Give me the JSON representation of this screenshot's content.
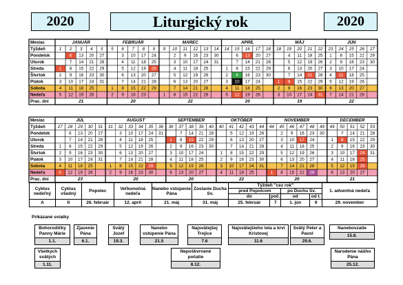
{
  "header": {
    "year_left": "2020",
    "title": "Liturgický rok",
    "year_right": "2020"
  },
  "calendar": {
    "row_labels": {
      "month": "Mesiac",
      "week": "Týždeň",
      "workdays": "Prac. dni"
    },
    "weekdays": [
      "Pondelok",
      "Utorok",
      "Streda",
      "Štvrtok",
      "Piatok",
      "Sobota",
      "Nedeľa"
    ],
    "weekday_colors": [
      "#ffffff",
      "#ffffff",
      "#ffffff",
      "#ffffff",
      "#ffffff",
      "#f6c24e",
      "#f4a0b4"
    ],
    "halves": [
      {
        "months": [
          {
            "name": "JANUÁR",
            "weeks": [
              1,
              2,
              3,
              4,
              5
            ],
            "days": [
              [
                null,
                null,
                1,
                2,
                3,
                4,
                5
              ],
              [
                6,
                7,
                8,
                9,
                10,
                11,
                12
              ],
              [
                13,
                14,
                15,
                16,
                17,
                18,
                19
              ],
              [
                20,
                21,
                22,
                23,
                24,
                25,
                26
              ],
              [
                27,
                28,
                29,
                30,
                31,
                null,
                null
              ]
            ],
            "workdays": 21,
            "highlights": [
              {
                "day": 1,
                "color": "#e8553a"
              },
              {
                "day": 6,
                "color": "#e8553a"
              }
            ]
          },
          {
            "name": "FEBRUÁR",
            "weeks": [
              5,
              6,
              7,
              8,
              9
            ],
            "days": [
              [
                null,
                null,
                null,
                null,
                null,
                1,
                2
              ],
              [
                3,
                4,
                5,
                6,
                7,
                8,
                9
              ],
              [
                10,
                11,
                12,
                13,
                14,
                15,
                16
              ],
              [
                17,
                18,
                19,
                20,
                21,
                22,
                23
              ],
              [
                24,
                25,
                26,
                27,
                28,
                29,
                null
              ]
            ],
            "workdays": 20,
            "highlights": [
              {
                "day": 26,
                "color": "#e8553a"
              }
            ]
          },
          {
            "name": "MAREC",
            "weeks": [
              9,
              10,
              11,
              12,
              13,
              14
            ],
            "days": [
              [
                null,
                null,
                null,
                null,
                null,
                null,
                1
              ],
              [
                2,
                3,
                4,
                5,
                6,
                7,
                8
              ],
              [
                9,
                10,
                11,
                12,
                13,
                14,
                15
              ],
              [
                16,
                17,
                18,
                19,
                20,
                21,
                22
              ],
              [
                23,
                24,
                25,
                26,
                27,
                28,
                29
              ],
              [
                30,
                31,
                null,
                null,
                null,
                null,
                null
              ]
            ],
            "workdays": 22,
            "highlights": []
          },
          {
            "name": "APRÍL",
            "weeks": [
              14,
              15,
              16,
              17,
              18
            ],
            "days": [
              [
                null,
                null,
                1,
                2,
                3,
                4,
                5
              ],
              [
                6,
                7,
                8,
                9,
                10,
                11,
                12
              ],
              [
                13,
                14,
                15,
                16,
                17,
                18,
                19
              ],
              [
                20,
                21,
                22,
                23,
                24,
                25,
                26
              ],
              [
                27,
                28,
                29,
                30,
                null,
                null,
                null
              ]
            ],
            "workdays": 20,
            "highlights": [
              {
                "day": 9,
                "color": "#3aa84a"
              },
              {
                "day": 10,
                "color": "#111111"
              },
              {
                "day": 12,
                "color": "#e8553a"
              },
              {
                "day": 13,
                "color": "#e8553a"
              }
            ]
          },
          {
            "name": "MÁJ",
            "weeks": [
              18,
              19,
              20,
              21,
              22
            ],
            "days": [
              [
                null,
                null,
                null,
                null,
                1,
                2,
                3
              ],
              [
                4,
                5,
                6,
                7,
                8,
                9,
                10
              ],
              [
                11,
                12,
                13,
                14,
                15,
                16,
                17
              ],
              [
                18,
                19,
                20,
                21,
                22,
                23,
                24
              ],
              [
                25,
                26,
                27,
                28,
                29,
                30,
                31
              ]
            ],
            "workdays": 19,
            "highlights": [
              {
                "day": 1,
                "color": "#e8553a"
              },
              {
                "day": 8,
                "color": "#e8553a"
              },
              {
                "day": 21,
                "color": "#e8553a"
              },
              {
                "day": 31,
                "color": "#e8553a"
              }
            ]
          },
          {
            "name": "JÚN",
            "weeks": [
              23,
              24,
              25,
              26,
              27
            ],
            "days": [
              [
                1,
                2,
                3,
                4,
                5,
                6,
                7
              ],
              [
                8,
                9,
                10,
                11,
                12,
                13,
                14
              ],
              [
                15,
                16,
                17,
                18,
                19,
                20,
                21
              ],
              [
                22,
                23,
                24,
                25,
                26,
                27,
                28
              ],
              [
                29,
                30,
                null,
                null,
                null,
                null,
                null
              ]
            ],
            "workdays": 22,
            "highlights": [
              {
                "day": 11,
                "color": "#e8553a"
              }
            ]
          }
        ]
      },
      {
        "months": [
          {
            "name": "JÚL",
            "weeks": [
              27,
              28,
              29,
              30,
              31
            ],
            "days": [
              [
                null,
                null,
                1,
                2,
                3,
                4,
                5
              ],
              [
                6,
                7,
                8,
                9,
                10,
                11,
                12
              ],
              [
                13,
                14,
                15,
                16,
                17,
                18,
                19
              ],
              [
                20,
                21,
                22,
                23,
                24,
                25,
                26
              ],
              [
                27,
                28,
                29,
                30,
                31,
                null,
                null
              ]
            ],
            "workdays": 23,
            "highlights": [
              {
                "day": 5,
                "color": "#e8553a"
              }
            ]
          },
          {
            "name": "AUGUST",
            "weeks": [
              31,
              32,
              33,
              34,
              35,
              36
            ],
            "days": [
              [
                null,
                null,
                null,
                null,
                null,
                1,
                2
              ],
              [
                3,
                4,
                5,
                6,
                7,
                8,
                9
              ],
              [
                10,
                11,
                12,
                13,
                14,
                15,
                16
              ],
              [
                17,
                18,
                19,
                20,
                21,
                22,
                23
              ],
              [
                24,
                25,
                26,
                27,
                28,
                29,
                30
              ],
              [
                31,
                null,
                null,
                null,
                null,
                null,
                null
              ]
            ],
            "workdays": 20,
            "highlights": [
              {
                "day": 29,
                "color": "#e8553a"
              }
            ]
          },
          {
            "name": "SEPTEMBER",
            "weeks": [
              36,
              37,
              38,
              39,
              40
            ],
            "days": [
              [
                null,
                1,
                2,
                3,
                4,
                5,
                6
              ],
              [
                7,
                8,
                9,
                10,
                11,
                12,
                13
              ],
              [
                14,
                15,
                16,
                17,
                18,
                19,
                20
              ],
              [
                21,
                22,
                23,
                24,
                25,
                26,
                27
              ],
              [
                28,
                29,
                30,
                null,
                null,
                null,
                null
              ]
            ],
            "workdays": 20,
            "highlights": [
              {
                "day": 1,
                "color": "#e8553a"
              },
              {
                "day": 15,
                "color": "#e8553a"
              }
            ]
          },
          {
            "name": "OKTÓBER",
            "weeks": [
              40,
              41,
              42,
              43,
              44
            ],
            "days": [
              [
                null,
                null,
                null,
                1,
                2,
                3,
                4
              ],
              [
                5,
                6,
                7,
                8,
                9,
                10,
                11
              ],
              [
                12,
                13,
                14,
                15,
                16,
                17,
                18
              ],
              [
                19,
                20,
                21,
                22,
                23,
                24,
                25
              ],
              [
                26,
                27,
                28,
                29,
                30,
                31,
                null
              ]
            ],
            "workdays": 22,
            "highlights": []
          },
          {
            "name": "NOVEMBER",
            "weeks": [
              44,
              45,
              46,
              47,
              48,
              49
            ],
            "days": [
              [
                null,
                null,
                null,
                null,
                null,
                null,
                1
              ],
              [
                2,
                3,
                4,
                5,
                6,
                7,
                8
              ],
              [
                9,
                10,
                11,
                12,
                13,
                14,
                15
              ],
              [
                16,
                17,
                18,
                19,
                20,
                21,
                22
              ],
              [
                23,
                24,
                25,
                26,
                27,
                28,
                29
              ],
              [
                30,
                null,
                null,
                null,
                null,
                null,
                null
              ]
            ],
            "workdays": 20,
            "highlights": [
              {
                "day": 1,
                "color": "#e8553a"
              },
              {
                "day": 17,
                "color": "#e8553a"
              },
              {
                "day": 29,
                "color": "#b0509a"
              }
            ]
          },
          {
            "name": "DECEMBER",
            "weeks": [
              49,
              50,
              51,
              52,
              53
            ],
            "days": [
              [
                null,
                1,
                2,
                3,
                4,
                5,
                6
              ],
              [
                7,
                8,
                9,
                10,
                11,
                12,
                13
              ],
              [
                14,
                15,
                16,
                17,
                18,
                19,
                20
              ],
              [
                21,
                22,
                23,
                24,
                25,
                26,
                27
              ],
              [
                28,
                29,
                30,
                31,
                null,
                null,
                null
              ]
            ],
            "workdays": 21,
            "highlights": [
              {
                "day": 8,
                "color": "#e8553a"
              },
              {
                "day": 24,
                "color": "#e8553a"
              },
              {
                "day": 25,
                "color": "#e8553a"
              },
              {
                "day": 26,
                "color": "#e8553a"
              }
            ]
          }
        ]
      }
    ]
  },
  "cycle_table": {
    "headers": [
      "Cyklus nedeľný",
      "Cyklus všedný",
      "Popolec",
      "Veľkonočná nedeľa",
      "Nanebo vstúpenie Pána",
      "Zoslanie Ducha Sv.",
      "Týždeň \"cez rok\"",
      "1. adventná nedeľa"
    ],
    "subheaders": [
      "pred Popolcom",
      "po Duchu Sv."
    ],
    "subsubheaders": [
      "do",
      "poč.",
      "od",
      "od t."
    ],
    "values": [
      "A",
      "II",
      "26. február",
      "12. apríl",
      "21. máj",
      "31. máj",
      "25. február",
      "7",
      "1. jún",
      "9",
      "29. november"
    ]
  },
  "feasts": {
    "title": "Prikázané sviatky",
    "items": [
      {
        "name": "Bohorodičky Panny Márie",
        "date": "1.1."
      },
      {
        "name": "Zjavenie Pána",
        "date": "6.1."
      },
      {
        "name": "Svätý Jozef",
        "date": "19.3."
      },
      {
        "name": "Nanebo vstúpenie Pána",
        "date": "21.5"
      },
      {
        "name": "Najsvätejšej Trojice",
        "date": "7.6"
      },
      {
        "name": "Najsvätejšieho tela a krvi Kristovej",
        "date": "11.6"
      },
      {
        "name": "Svätý Peter a Pavol",
        "date": "29.6."
      },
      {
        "name": "Nanebovzatie",
        "date": "15.8."
      },
      {
        "name": "Všetkých svätých",
        "date": "1.11."
      },
      {
        "name": "Nepoškvrnené počatie",
        "date": "8.12."
      },
      {
        "name": "Narodenie nášho Pána",
        "date": "25.12."
      }
    ]
  }
}
